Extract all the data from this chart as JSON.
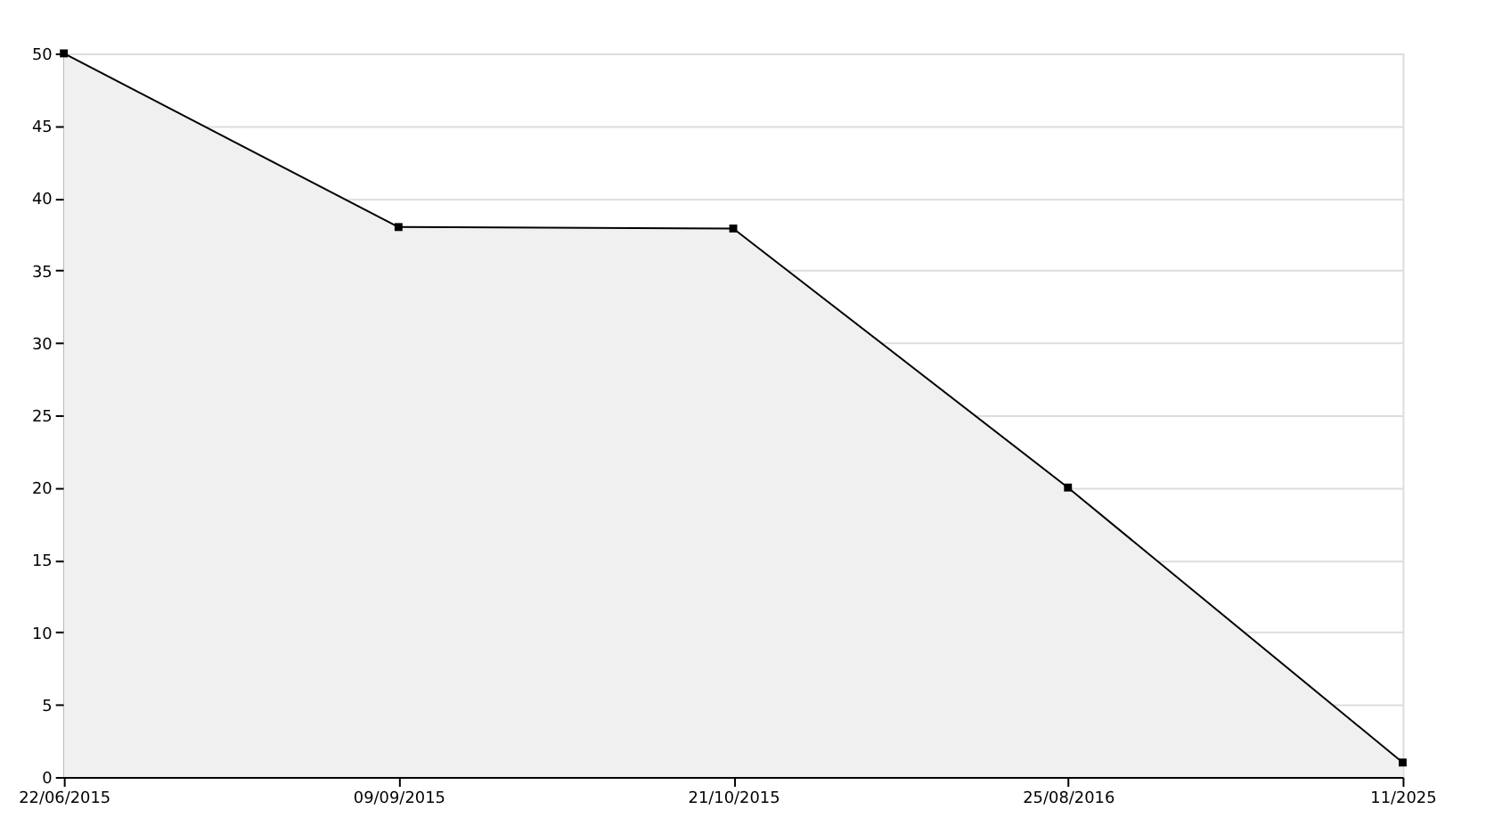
{
  "chart_data": {
    "type": "area",
    "categories": [
      "22/06/2015",
      "09/09/2015",
      "21/10/2015",
      "25/08/2016",
      "11/2025"
    ],
    "series": [
      {
        "color": "#000000",
        "values": [
          50,
          38,
          37.9,
          20,
          1
        ]
      }
    ],
    "ylim": [
      0,
      50
    ],
    "yticks": [
      0,
      5,
      10,
      15,
      20,
      25,
      30,
      35,
      40,
      45,
      50
    ],
    "grid": "y",
    "marker": "square",
    "line_style": "solid"
  }
}
